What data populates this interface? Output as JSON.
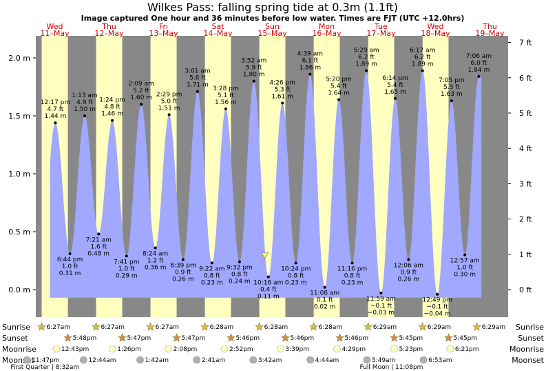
{
  "title": "Wilkes Pass: falling  spring tide at 0.3m (1.1ft)",
  "subtitle": "Image captured One hour and 36 minutes before low water. Times are FJT (UTC +12.0hrs)",
  "days": [
    {
      "dow": "Wed",
      "date": "11–May"
    },
    {
      "dow": "Thu",
      "date": "12–May"
    },
    {
      "dow": "Fri",
      "date": "13–May"
    },
    {
      "dow": "Sat",
      "date": "14–May"
    },
    {
      "dow": "Sun",
      "date": "15–May"
    },
    {
      "dow": "Mon",
      "date": "16–May"
    },
    {
      "dow": "Tue",
      "date": "17–May"
    },
    {
      "dow": "Wed",
      "date": "18–May"
    },
    {
      "dow": "Thu",
      "date": "19–May"
    }
  ],
  "axes": {
    "left_ticks": [
      "0.0 m",
      "0.5 m",
      "1.0 m",
      "1.5 m",
      "2.0 m"
    ],
    "right_ticks": [
      "0 ft",
      "1 ft",
      "2 ft",
      "3 ft",
      "4 ft",
      "5 ft",
      "6 ft",
      "7 ft"
    ]
  },
  "chart_data": {
    "type": "area",
    "units": "m",
    "ylim": [
      -0.07,
      2.1
    ],
    "x_unit": "day",
    "tides": [
      {
        "t": 0.512,
        "h": 1.44,
        "time": "12:17 pm",
        "ft": "4.7 ft",
        "m": "1.44 m",
        "type": "high"
      },
      {
        "t": 0.78,
        "h": 0.31,
        "time": "6:44 pm",
        "ft": "1.0 ft",
        "m": "0.31 m",
        "type": "low"
      },
      {
        "t": 1.051,
        "h": 1.5,
        "time": "1:13 am",
        "ft": "4.9 ft",
        "m": "1.50 m",
        "type": "high"
      },
      {
        "t": 1.307,
        "h": 0.48,
        "time": "7:21 am",
        "ft": "1.6 ft",
        "m": "0.48 m",
        "type": "low"
      },
      {
        "t": 1.558,
        "h": 1.46,
        "time": "1:24 pm",
        "ft": "4.8 ft",
        "m": "1.46 m",
        "type": "high"
      },
      {
        "t": 1.82,
        "h": 0.29,
        "time": "7:41 pm",
        "ft": "1.0 ft",
        "m": "0.29 m",
        "type": "low"
      },
      {
        "t": 2.09,
        "h": 1.6,
        "time": "2:09 am",
        "ft": "5.2 ft",
        "m": "1.60 m",
        "type": "high"
      },
      {
        "t": 2.35,
        "h": 0.36,
        "time": "8:24 am",
        "ft": "1.2 ft",
        "m": "0.36 m",
        "type": "low"
      },
      {
        "t": 2.603,
        "h": 1.51,
        "time": "2:29 pm",
        "ft": "5.0 ft",
        "m": "1.51 m",
        "type": "high"
      },
      {
        "t": 2.86,
        "h": 0.26,
        "time": "8:39 pm",
        "ft": "0.9 ft",
        "m": "0.26 m",
        "type": "low"
      },
      {
        "t": 3.126,
        "h": 1.71,
        "time": "3:01 am",
        "ft": "5.6 ft",
        "m": "1.71 m",
        "type": "high"
      },
      {
        "t": 3.39,
        "h": 0.23,
        "time": "9:22 am",
        "ft": "0.8 ft",
        "m": "0.23 m",
        "type": "low"
      },
      {
        "t": 3.644,
        "h": 1.56,
        "time": "3:28 pm",
        "ft": "5.1 ft",
        "m": "1.56 m",
        "type": "high"
      },
      {
        "t": 3.897,
        "h": 0.24,
        "time": "9:32 pm",
        "ft": "0.8 ft",
        "m": "0.24 m",
        "type": "low"
      },
      {
        "t": 4.161,
        "h": 1.8,
        "time": "3:52 am",
        "ft": "5.9 ft",
        "m": "1.80 m",
        "type": "high"
      },
      {
        "t": 4.428,
        "h": 0.11,
        "time": "10:16 am",
        "ft": "0.4 ft",
        "m": "0.11 m",
        "type": "low"
      },
      {
        "t": 4.686,
        "h": 1.61,
        "time": "4:26 pm",
        "ft": "5.3 ft",
        "m": "1.61 m",
        "type": "high"
      },
      {
        "t": 4.933,
        "h": 0.23,
        "time": "10:24 pm",
        "ft": "0.8 ft",
        "m": "0.23 m",
        "type": "low"
      },
      {
        "t": 5.194,
        "h": 1.86,
        "time": "4:39 am",
        "ft": "6.1 ft",
        "m": "1.86 m",
        "type": "high"
      },
      {
        "t": 5.464,
        "h": 0.02,
        "time": "11:08 am",
        "ft": "0.1 ft",
        "m": "0.02 m",
        "type": "low"
      },
      {
        "t": 5.722,
        "h": 1.64,
        "time": "5:20 pm",
        "ft": "5.4 ft",
        "m": "1.64 m",
        "type": "high"
      },
      {
        "t": 5.969,
        "h": 0.23,
        "time": "11:16 pm",
        "ft": "0.8 ft",
        "m": "0.23 m",
        "type": "low"
      },
      {
        "t": 6.228,
        "h": 1.89,
        "time": "5:29 am",
        "ft": "6.2 ft",
        "m": "1.89 m",
        "type": "high"
      },
      {
        "t": 6.499,
        "h": -0.03,
        "time": "11:59 am",
        "ft": "−0.1 ft",
        "m": "−0.03 m",
        "type": "low"
      },
      {
        "t": 6.76,
        "h": 1.65,
        "time": "6:14 pm",
        "ft": "5.4 ft",
        "m": "1.65 m",
        "type": "high"
      },
      {
        "t": 7.004,
        "h": 0.26,
        "time": "12:06 am",
        "ft": "0.9 ft",
        "m": "0.26 m",
        "type": "low"
      },
      {
        "t": 7.262,
        "h": 1.89,
        "time": "6:17 am",
        "ft": "6.2 ft",
        "m": "1.89 m",
        "type": "high"
      },
      {
        "t": 7.534,
        "h": -0.04,
        "time": "12:49 pm",
        "ft": "−0.1 ft",
        "m": "−0.04 m",
        "type": "low"
      },
      {
        "t": 7.795,
        "h": 1.63,
        "time": "7:05 pm",
        "ft": "5.3 ft",
        "m": "1.63 m",
        "type": "high"
      },
      {
        "t": 8.04,
        "h": 0.3,
        "time": "12:57 am",
        "ft": "1.0 ft",
        "m": "0.30 m",
        "type": "low"
      },
      {
        "t": 8.296,
        "h": 1.84,
        "time": "7:06 am",
        "ft": "6.0 ft",
        "m": "1.84 m",
        "type": "high"
      }
    ],
    "current": {
      "t": 4.363,
      "h": 0.3
    }
  },
  "rows": {
    "sunrise_label": "Sunrise",
    "sunset_label": "Sunset",
    "moonrise_label": "Moonrise",
    "moonset_label": "Moonset",
    "sunrise": [
      {
        "t": 0.26,
        "time": "6:27am"
      },
      {
        "t": 1.26,
        "time": "6:27am"
      },
      {
        "t": 2.26,
        "time": "6:27am"
      },
      {
        "t": 3.261,
        "time": "6:28am"
      },
      {
        "t": 4.261,
        "time": "6:28am"
      },
      {
        "t": 5.261,
        "time": "6:28am"
      },
      {
        "t": 6.262,
        "time": "6:29am"
      },
      {
        "t": 7.262,
        "time": "6:29am"
      },
      {
        "t": 8.262,
        "time": "6:29am"
      }
    ],
    "sunset": [
      {
        "t": 0.742,
        "time": "5:48pm"
      },
      {
        "t": 1.741,
        "time": "5:47pm"
      },
      {
        "t": 2.741,
        "time": "5:47pm"
      },
      {
        "t": 3.74,
        "time": "5:46pm"
      },
      {
        "t": 4.74,
        "time": "5:46pm"
      },
      {
        "t": 5.74,
        "time": "5:46pm"
      },
      {
        "t": 6.74,
        "time": "5:45pm"
      },
      {
        "t": 7.74,
        "time": "5:45pm"
      }
    ],
    "moonrise": [
      {
        "t": 0.53,
        "time": "12:43pm"
      },
      {
        "t": 1.56,
        "time": "1:26pm"
      },
      {
        "t": 2.59,
        "time": "2:08pm"
      },
      {
        "t": 3.62,
        "time": "2:52pm"
      },
      {
        "t": 4.65,
        "time": "3:39pm"
      },
      {
        "t": 5.69,
        "time": "4:29pm"
      },
      {
        "t": 6.74,
        "time": "5:23pm"
      },
      {
        "t": 7.77,
        "time": "6:21pm"
      }
    ],
    "moonset": [
      {
        "t": -0.01,
        "time": "11:47pm"
      },
      {
        "t": 1.03,
        "time": "12:44am"
      },
      {
        "t": 2.07,
        "time": "1:42am"
      },
      {
        "t": 3.11,
        "time": "2:41am"
      },
      {
        "t": 4.15,
        "time": "3:42am"
      },
      {
        "t": 5.2,
        "time": "4:44am"
      },
      {
        "t": 6.24,
        "time": "5:49am"
      },
      {
        "t": 7.28,
        "time": "6:53am"
      }
    ],
    "phases": [
      {
        "t": 0.32,
        "text": "First Quarter | 8:32am"
      },
      {
        "t": 6.69,
        "text": "Full Moon | 11:08pm"
      }
    ]
  },
  "colors": {
    "night": "#888888",
    "day": "#ffffc0",
    "water": "#a0a8ff",
    "star_fill": "#d4c04a",
    "sunset_star": "#e08840",
    "moonrise_fill": "#ffffc0",
    "moonset_fill": "#b0b0b0"
  }
}
